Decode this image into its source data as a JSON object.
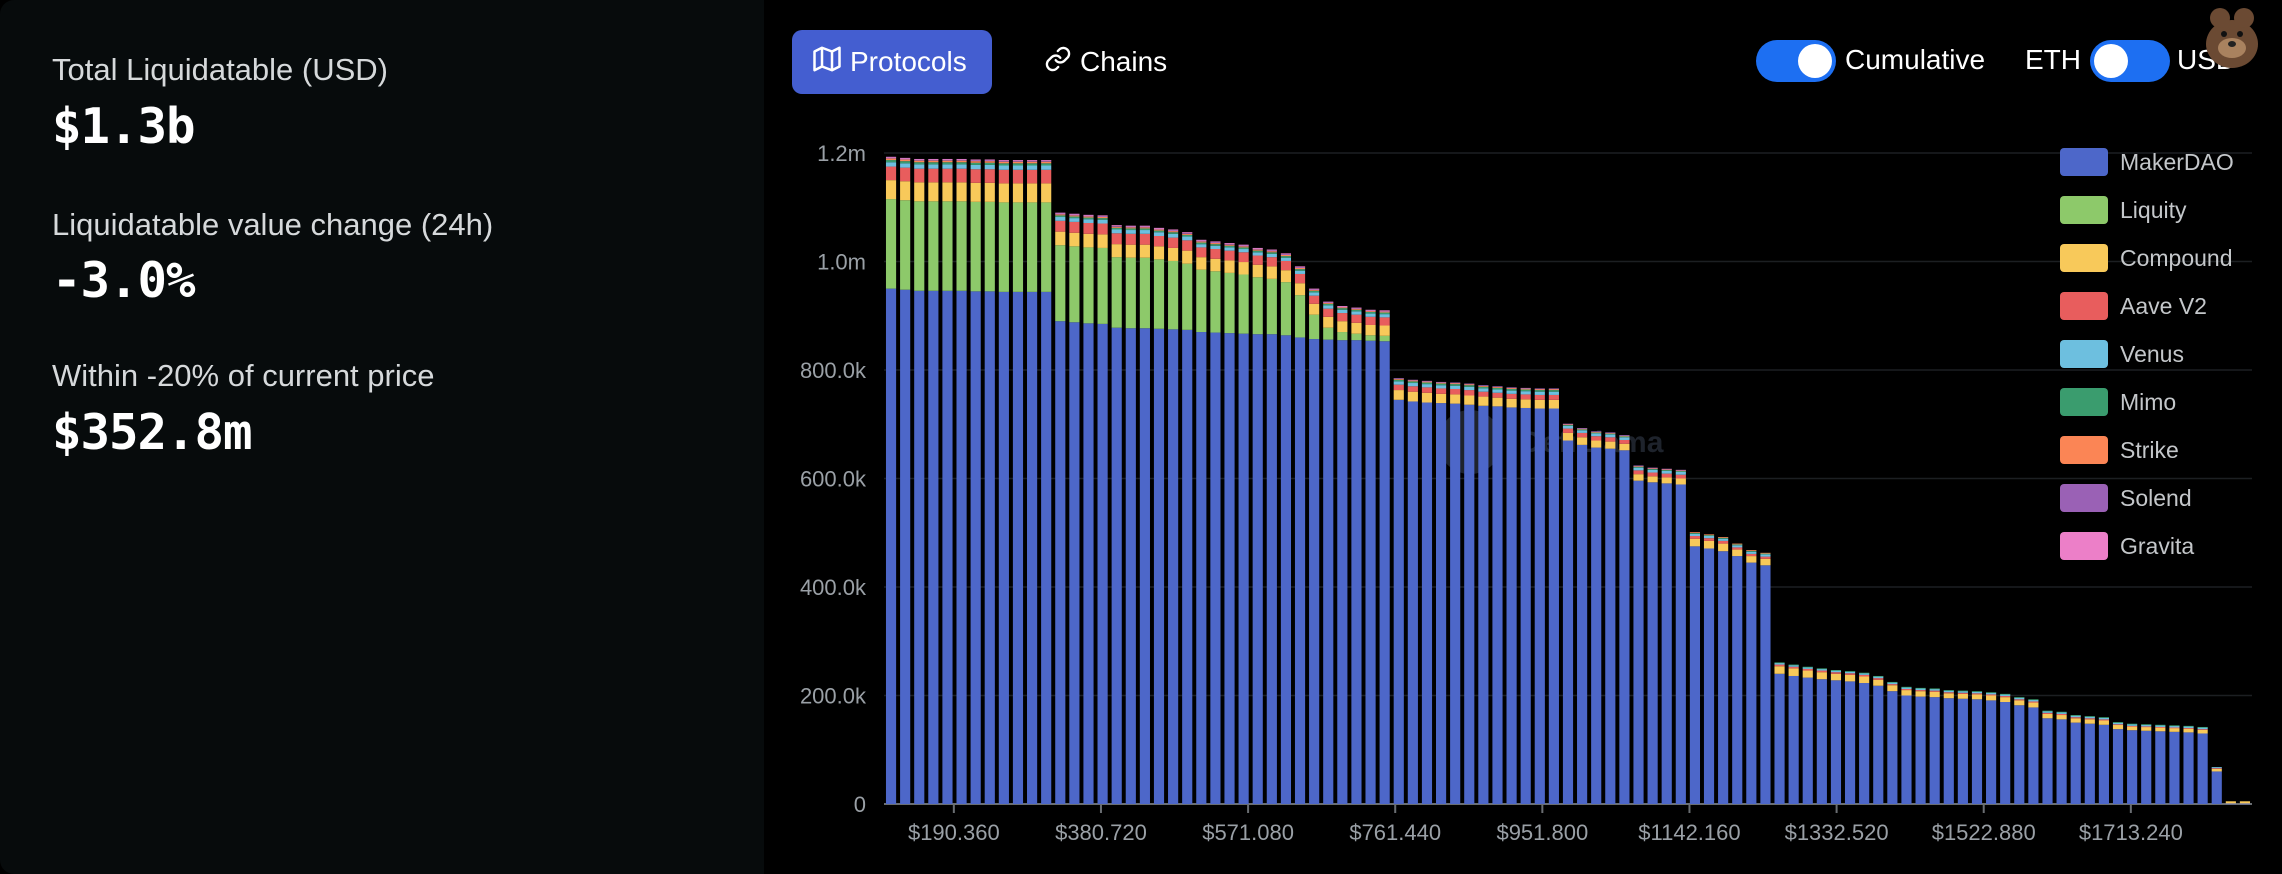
{
  "stats": [
    {
      "label": "Total Liquidatable (USD)",
      "value": "$1.3b"
    },
    {
      "label": "Liquidatable value change (24h)",
      "value": "-3.0%"
    },
    {
      "label": "Within -20% of current price",
      "value": "$352.8m"
    }
  ],
  "tabs": {
    "protocols": "Protocols",
    "chains": "Chains"
  },
  "toggles": {
    "cumulative": "Cumulative",
    "eth": "ETH",
    "usd": "USD"
  },
  "watermark": "DefiLlama",
  "colors": {
    "MakerDAO": "#4d67c9",
    "Liquity": "#8dc96a",
    "Compound": "#f8c95a",
    "Aave V2": "#e85d5d",
    "Venus": "#6dbfdf",
    "Mimo": "#3a9c6e",
    "Strike": "#fb8555",
    "Solend": "#9a61b5",
    "Gravita": "#ec7fc8"
  },
  "chart_data": {
    "type": "bar",
    "stacked": true,
    "ylim": [
      0,
      1200000
    ],
    "y_ticks": [
      "0",
      "200.0k",
      "400.0k",
      "600.0k",
      "800.0k",
      "1.0m",
      "1.2m"
    ],
    "x_ticks": [
      "$190.360",
      "$380.720",
      "$571.080",
      "$761.440",
      "$951.800",
      "$1142.160",
      "$1332.520",
      "$1522.880",
      "$1713.240"
    ],
    "x_range": [
      100,
      1870
    ],
    "bin_width": 19.036,
    "legend_position": "top-right",
    "legend": [
      "MakerDAO",
      "Liquity",
      "Compound",
      "Aave V2",
      "Venus",
      "Mimo",
      "Strike",
      "Solend",
      "Gravita"
    ],
    "series": [
      {
        "name": "MakerDAO",
        "values": [
          950000,
          948000,
          946000,
          946000,
          946000,
          946000,
          945000,
          945000,
          944000,
          944000,
          944000,
          944000,
          890000,
          888000,
          886000,
          885000,
          878000,
          877000,
          877000,
          876000,
          875000,
          874000,
          870000,
          869000,
          868000,
          867000,
          866000,
          866000,
          864000,
          860000,
          857000,
          856000,
          855000,
          855000,
          854000,
          853000,
          745000,
          742000,
          740000,
          739000,
          738000,
          736000,
          734000,
          733000,
          731000,
          730000,
          729000,
          729000,
          670000,
          662000,
          657000,
          655000,
          652000,
          596000,
          593000,
          591000,
          589000,
          475000,
          471000,
          466000,
          457000,
          445000,
          440000,
          240000,
          236000,
          233000,
          230000,
          228000,
          226000,
          223000,
          218000,
          208000,
          200000,
          198000,
          197000,
          195000,
          194000,
          193000,
          191000,
          188000,
          182000,
          178000,
          158000,
          156000,
          150000,
          148000,
          146000,
          138000,
          136000,
          135000,
          134000,
          133000,
          132000,
          130000,
          60000,
          1000,
          1000
        ]
      },
      {
        "name": "Liquity",
        "values": [
          165000,
          165000,
          165000,
          165000,
          165000,
          165000,
          165000,
          165000,
          165000,
          165000,
          165000,
          165000,
          140000,
          140000,
          140000,
          140000,
          130000,
          130000,
          130000,
          128000,
          126000,
          122000,
          115000,
          113000,
          111000,
          109000,
          105000,
          102000,
          98000,
          78000,
          45000,
          22000,
          15000,
          12000,
          10000,
          10000,
          0,
          0,
          0,
          0,
          0,
          0,
          0,
          0,
          0,
          0,
          0,
          0,
          0,
          0,
          0,
          0,
          0,
          0,
          0,
          0,
          0,
          0,
          0,
          0,
          0,
          0,
          0,
          0,
          0,
          0,
          0,
          0,
          0,
          0,
          0,
          0,
          0,
          0,
          0,
          0,
          0,
          0,
          0,
          0,
          0,
          0,
          0,
          0,
          0,
          0,
          0,
          0,
          0,
          0,
          0,
          0,
          0,
          0,
          0,
          0,
          0
        ]
      },
      {
        "name": "Compound",
        "values": [
          35000,
          35000,
          35000,
          35000,
          35000,
          35000,
          35000,
          35000,
          35000,
          35000,
          35000,
          35000,
          25000,
          25000,
          25000,
          25000,
          24000,
          24000,
          24000,
          24000,
          24000,
          24000,
          23000,
          23000,
          23000,
          23000,
          23000,
          23000,
          22000,
          22000,
          20000,
          20000,
          20000,
          20000,
          19000,
          19000,
          18000,
          18000,
          18000,
          17000,
          17000,
          17000,
          17000,
          16000,
          16000,
          16000,
          16000,
          16000,
          14000,
          14000,
          13000,
          13000,
          12000,
          12000,
          11000,
          11000,
          11000,
          14000,
          14000,
          14000,
          12000,
          12000,
          12000,
          14000,
          14000,
          13000,
          13000,
          12000,
          12000,
          12000,
          11000,
          11000,
          10000,
          10000,
          10000,
          9000,
          9000,
          9000,
          9000,
          9000,
          9000,
          9000,
          8000,
          8000,
          8000,
          8000,
          8000,
          8000,
          7000,
          7000,
          7000,
          7000,
          7000,
          7000,
          5000,
          4000,
          4000
        ]
      },
      {
        "name": "Aave V2",
        "values": [
          25000,
          25000,
          25000,
          25000,
          25000,
          25000,
          25000,
          25000,
          25000,
          25000,
          25000,
          25000,
          20000,
          20000,
          20000,
          20000,
          20000,
          20000,
          20000,
          19000,
          19000,
          19000,
          18000,
          18000,
          18000,
          18000,
          17000,
          17000,
          17000,
          17000,
          15000,
          15000,
          15000,
          15000,
          15000,
          15000,
          10000,
          10000,
          10000,
          10000,
          10000,
          10000,
          9000,
          9000,
          9000,
          9000,
          9000,
          9000,
          8000,
          8000,
          8000,
          8000,
          7000,
          7000,
          7000,
          7000,
          7000,
          5000,
          5000,
          5000,
          4000,
          4000,
          4000,
          3000,
          3000,
          3000,
          3000,
          3000,
          3000,
          3000,
          3000,
          2000,
          2000,
          2000,
          2000,
          2000,
          2000,
          2000,
          2000,
          2000,
          2000,
          2000,
          2000,
          2000,
          2000,
          2000,
          2000,
          1000,
          1000,
          1000,
          1000,
          1000,
          1000,
          1000,
          1000,
          0,
          0
        ]
      },
      {
        "name": "Venus",
        "values": [
          8000,
          8000,
          8000,
          8000,
          8000,
          8000,
          8000,
          8000,
          8000,
          8000,
          8000,
          8000,
          7000,
          7000,
          7000,
          7000,
          7000,
          7000,
          7000,
          7000,
          7000,
          7000,
          6000,
          6000,
          6000,
          6000,
          6000,
          6000,
          6000,
          6000,
          6000,
          6000,
          6000,
          6000,
          6000,
          6000,
          6000,
          6000,
          6000,
          6000,
          6000,
          6000,
          6000,
          6000,
          6000,
          6000,
          6000,
          6000,
          5000,
          5000,
          5000,
          5000,
          5000,
          5000,
          5000,
          5000,
          5000,
          4000,
          4000,
          4000,
          4000,
          4000,
          4000,
          3000,
          3000,
          3000,
          3000,
          3000,
          3000,
          3000,
          3000,
          3000,
          3000,
          3000,
          3000,
          3000,
          3000,
          3000,
          3000,
          3000,
          3000,
          3000,
          3000,
          3000,
          3000,
          3000,
          3000,
          3000,
          3000,
          3000,
          3000,
          3000,
          3000,
          3000,
          2000,
          0,
          0
        ]
      },
      {
        "name": "Mimo",
        "values": [
          4000,
          4000,
          4000,
          4000,
          4000,
          4000,
          4000,
          4000,
          4000,
          4000,
          4000,
          4000,
          3000,
          3000,
          3000,
          3000,
          3000,
          3000,
          3000,
          3000,
          3000,
          3000,
          3000,
          3000,
          3000,
          3000,
          3000,
          3000,
          3000,
          3000,
          3000,
          3000,
          3000,
          3000,
          3000,
          3000,
          3000,
          3000,
          3000,
          3000,
          3000,
          3000,
          3000,
          3000,
          3000,
          3000,
          3000,
          3000,
          2000,
          2000,
          2000,
          2000,
          2000,
          2000,
          2000,
          2000,
          2000,
          2000,
          2000,
          2000,
          2000,
          2000,
          2000,
          1000,
          1000,
          1000,
          1000,
          1000,
          1000,
          1000,
          1000,
          1000,
          1000,
          1000,
          1000,
          1000,
          1000,
          1000,
          1000,
          1000,
          1000,
          1000,
          1000,
          1000,
          1000,
          1000,
          1000,
          1000,
          1000,
          1000,
          1000,
          1000,
          1000,
          1000,
          0,
          0,
          0
        ]
      },
      {
        "name": "Strike",
        "values": [
          3000,
          3000,
          3000,
          3000,
          3000,
          3000,
          3000,
          3000,
          3000,
          3000,
          3000,
          3000,
          2000,
          2000,
          2000,
          2000,
          2000,
          2000,
          2000,
          2000,
          2000,
          2000,
          2000,
          2000,
          2000,
          2000,
          2000,
          2000,
          2000,
          2000,
          2000,
          2000,
          2000,
          2000,
          2000,
          2000,
          2000,
          2000,
          2000,
          2000,
          2000,
          2000,
          2000,
          2000,
          2000,
          2000,
          2000,
          2000,
          1000,
          1000,
          1000,
          1000,
          1000,
          1000,
          1000,
          1000,
          1000,
          1000,
          1000,
          1000,
          1000,
          1000,
          1000,
          0,
          0,
          0,
          0,
          0,
          0,
          0,
          0,
          0,
          0,
          0,
          0,
          0,
          0,
          0,
          0,
          0,
          0,
          0,
          0,
          0,
          0,
          0,
          0,
          0,
          0,
          0,
          0,
          0,
          0,
          0,
          0,
          0,
          0
        ]
      },
      {
        "name": "Solend",
        "values": [
          2000,
          2000,
          2000,
          2000,
          2000,
          2000,
          2000,
          2000,
          2000,
          2000,
          2000,
          2000,
          2000,
          2000,
          2000,
          2000,
          2000,
          2000,
          2000,
          2000,
          2000,
          2000,
          2000,
          2000,
          2000,
          2000,
          2000,
          2000,
          2000,
          2000,
          1000,
          1000,
          1000,
          1000,
          1000,
          1000,
          1000,
          1000,
          1000,
          1000,
          1000,
          1000,
          1000,
          1000,
          1000,
          1000,
          1000,
          1000,
          1000,
          1000,
          1000,
          1000,
          1000,
          1000,
          1000,
          1000,
          1000,
          0,
          0,
          0,
          0,
          0,
          0,
          0,
          0,
          0,
          0,
          0,
          0,
          0,
          0,
          0,
          0,
          0,
          0,
          0,
          0,
          0,
          0,
          0,
          0,
          0,
          0,
          0,
          0,
          0,
          0,
          0,
          0,
          0,
          0,
          0,
          0,
          0,
          0,
          0,
          0
        ]
      },
      {
        "name": "Gravita",
        "values": [
          1000,
          1000,
          1000,
          1000,
          1000,
          1000,
          1000,
          1000,
          1000,
          1000,
          1000,
          1000,
          1000,
          1000,
          1000,
          1000,
          1000,
          1000,
          1000,
          1000,
          1000,
          1000,
          1000,
          1000,
          1000,
          1000,
          1000,
          1000,
          1000,
          1000,
          1000,
          1000,
          1000,
          1000,
          1000,
          1000,
          0,
          0,
          0,
          0,
          0,
          0,
          0,
          0,
          0,
          0,
          0,
          0,
          0,
          0,
          0,
          0,
          0,
          0,
          0,
          0,
          0,
          0,
          0,
          0,
          0,
          0,
          0,
          0,
          0,
          0,
          0,
          0,
          0,
          0,
          0,
          0,
          0,
          0,
          0,
          0,
          0,
          0,
          0,
          0,
          0,
          0,
          0,
          0,
          0,
          0,
          0,
          0,
          0,
          0,
          0,
          0,
          0,
          0,
          0,
          0,
          0
        ]
      }
    ]
  }
}
